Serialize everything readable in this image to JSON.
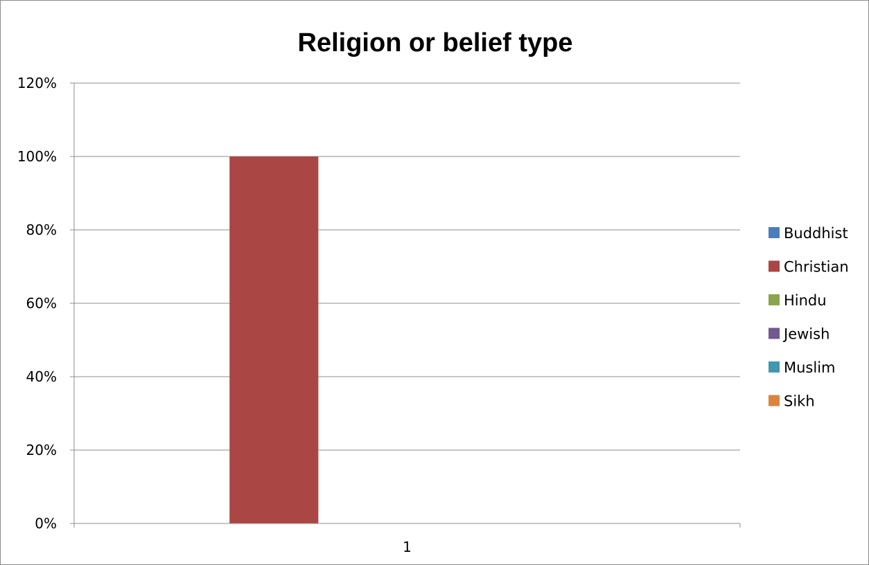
{
  "chart_data": {
    "type": "bar",
    "title": "Religion or belief type",
    "categories": [
      "1"
    ],
    "series": [
      {
        "name": "Buddhist",
        "values": [
          0
        ],
        "color": "#4a7ebb"
      },
      {
        "name": "Christian",
        "values": [
          1.0
        ],
        "color": "#aa4643"
      },
      {
        "name": "Hindu",
        "values": [
          0
        ],
        "color": "#89a54e"
      },
      {
        "name": "Jewish",
        "values": [
          0
        ],
        "color": "#71588f"
      },
      {
        "name": "Muslim",
        "values": [
          0
        ],
        "color": "#4198af"
      },
      {
        "name": "Sikh",
        "values": [
          0
        ],
        "color": "#db843d"
      }
    ],
    "ylim": [
      0,
      1.2
    ],
    "yticks": [
      "0%",
      "20%",
      "40%",
      "60%",
      "80%",
      "100%",
      "120%"
    ],
    "grid": true,
    "legend_position": "right"
  }
}
